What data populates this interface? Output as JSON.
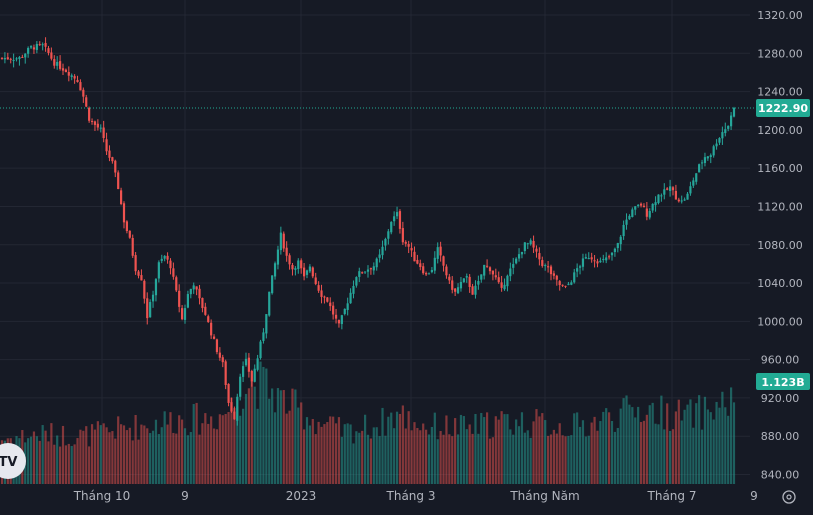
{
  "chart_data": {
    "type": "candlestick",
    "y_axis": {
      "range": [
        830,
        1335
      ],
      "ticks": [
        "1320.00",
        "1280.00",
        "1240.00",
        "1200.00",
        "1160.00",
        "1120.00",
        "1080.00",
        "1040.00",
        "1000.00",
        "960.00",
        "920.00",
        "880.00",
        "840.00"
      ]
    },
    "x_axis": {
      "ticks": [
        "Tháng 10",
        "9",
        "2023",
        "Tháng 3",
        "Tháng Năm",
        "Tháng 7",
        "9"
      ]
    },
    "last_price": {
      "label": "1222.90",
      "value": 1222.9,
      "color": "#22ab94"
    },
    "volume_badge": {
      "label": "1.123B"
    },
    "logo": {
      "text": "TV"
    },
    "colors": {
      "up": "#26a69a",
      "down": "#ef5350",
      "background": "#161a25",
      "grid": "#232733"
    },
    "price_anchors": [
      [
        0,
        1275
      ],
      [
        6,
        1275
      ],
      [
        10,
        1286
      ],
      [
        14,
        1288
      ],
      [
        16,
        1280
      ],
      [
        18,
        1270
      ],
      [
        22,
        1262
      ],
      [
        26,
        1252
      ],
      [
        28,
        1235
      ],
      [
        30,
        1212
      ],
      [
        32,
        1205
      ],
      [
        34,
        1200
      ],
      [
        36,
        1178
      ],
      [
        38,
        1165
      ],
      [
        40,
        1140
      ],
      [
        42,
        1105
      ],
      [
        44,
        1085
      ],
      [
        46,
        1055
      ],
      [
        48,
        1045
      ],
      [
        50,
        1005
      ],
      [
        52,
        1030
      ],
      [
        54,
        1060
      ],
      [
        56,
        1068
      ],
      [
        58,
        1058
      ],
      [
        60,
        1030
      ],
      [
        62,
        1002
      ],
      [
        64,
        1028
      ],
      [
        66,
        1040
      ],
      [
        68,
        1022
      ],
      [
        70,
        1008
      ],
      [
        72,
        988
      ],
      [
        74,
        970
      ],
      [
        76,
        955
      ],
      [
        78,
        915
      ],
      [
        80,
        900
      ],
      [
        82,
        945
      ],
      [
        84,
        958
      ],
      [
        86,
        938
      ],
      [
        88,
        962
      ],
      [
        90,
        990
      ],
      [
        92,
        1030
      ],
      [
        94,
        1060
      ],
      [
        96,
        1090
      ],
      [
        98,
        1068
      ],
      [
        100,
        1055
      ],
      [
        102,
        1062
      ],
      [
        104,
        1045
      ],
      [
        106,
        1058
      ],
      [
        108,
        1040
      ],
      [
        110,
        1028
      ],
      [
        112,
        1022
      ],
      [
        114,
        1008
      ],
      [
        116,
        995
      ],
      [
        118,
        1012
      ],
      [
        120,
        1030
      ],
      [
        122,
        1048
      ],
      [
        124,
        1052
      ],
      [
        126,
        1055
      ],
      [
        128,
        1058
      ],
      [
        130,
        1068
      ],
      [
        132,
        1085
      ],
      [
        134,
        1105
      ],
      [
        136,
        1112
      ],
      [
        138,
        1085
      ],
      [
        140,
        1078
      ],
      [
        142,
        1065
      ],
      [
        144,
        1058
      ],
      [
        146,
        1048
      ],
      [
        148,
        1055
      ],
      [
        150,
        1075
      ],
      [
        152,
        1058
      ],
      [
        154,
        1040
      ],
      [
        156,
        1030
      ],
      [
        158,
        1040
      ],
      [
        160,
        1045
      ],
      [
        162,
        1030
      ],
      [
        164,
        1040
      ],
      [
        166,
        1058
      ],
      [
        168,
        1055
      ],
      [
        170,
        1045
      ],
      [
        172,
        1032
      ],
      [
        174,
        1050
      ],
      [
        176,
        1058
      ],
      [
        178,
        1070
      ],
      [
        180,
        1080
      ],
      [
        182,
        1082
      ],
      [
        184,
        1070
      ],
      [
        186,
        1060
      ],
      [
        188,
        1055
      ],
      [
        190,
        1045
      ],
      [
        192,
        1038
      ],
      [
        194,
        1035
      ],
      [
        196,
        1043
      ],
      [
        198,
        1055
      ],
      [
        200,
        1063
      ],
      [
        202,
        1068
      ],
      [
        204,
        1065
      ],
      [
        206,
        1062
      ],
      [
        208,
        1065
      ],
      [
        210,
        1070
      ],
      [
        212,
        1080
      ],
      [
        214,
        1100
      ],
      [
        216,
        1112
      ],
      [
        218,
        1118
      ],
      [
        220,
        1122
      ],
      [
        222,
        1112
      ],
      [
        224,
        1122
      ],
      [
        226,
        1132
      ],
      [
        228,
        1135
      ],
      [
        230,
        1140
      ],
      [
        232,
        1130
      ],
      [
        234,
        1125
      ],
      [
        236,
        1132
      ],
      [
        238,
        1148
      ],
      [
        240,
        1162
      ],
      [
        242,
        1172
      ],
      [
        244,
        1175
      ],
      [
        246,
        1188
      ],
      [
        248,
        1198
      ],
      [
        250,
        1205
      ],
      [
        252,
        1222.9
      ]
    ],
    "volume_anchors": [
      [
        0,
        45
      ],
      [
        14,
        50
      ],
      [
        28,
        48
      ],
      [
        40,
        55
      ],
      [
        52,
        60
      ],
      [
        60,
        65
      ],
      [
        70,
        65
      ],
      [
        76,
        70
      ],
      [
        80,
        80
      ],
      [
        84,
        100
      ],
      [
        90,
        100
      ],
      [
        96,
        85
      ],
      [
        110,
        60
      ],
      [
        118,
        52
      ],
      [
        130,
        60
      ],
      [
        136,
        70
      ],
      [
        146,
        58
      ],
      [
        160,
        56
      ],
      [
        172,
        62
      ],
      [
        180,
        62
      ],
      [
        190,
        58
      ],
      [
        200,
        58
      ],
      [
        210,
        68
      ],
      [
        220,
        75
      ],
      [
        236,
        68
      ],
      [
        244,
        75
      ],
      [
        252,
        85
      ]
    ]
  }
}
